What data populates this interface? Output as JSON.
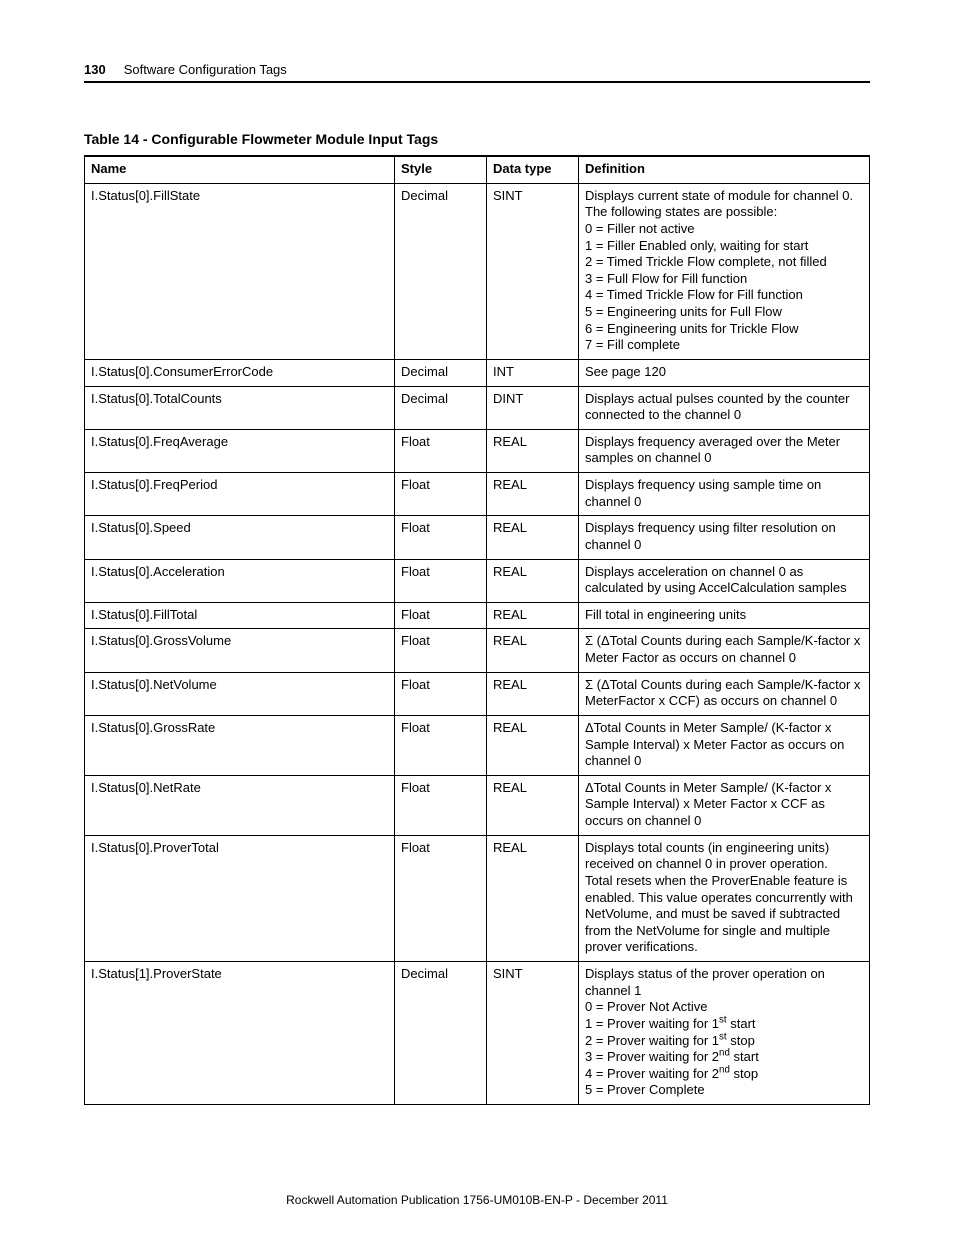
{
  "header": {
    "page_number": "130",
    "section_title": "Software Configuration Tags"
  },
  "table": {
    "title": "Table 14 - Configurable Flowmeter Module Input Tags",
    "columns": [
      "Name",
      "Style",
      "Data type",
      "Definition"
    ],
    "rows": [
      {
        "name": "I.Status[0].FillState",
        "style": "Decimal",
        "type": "SINT",
        "def_lines": [
          "Displays current state of module for channel 0. The following states are possible:",
          "0 = Filler not active",
          "1 = Filler Enabled only, waiting for start",
          "2 = Timed Trickle Flow complete, not filled",
          "3 = Full Flow for Fill function",
          "4 = Timed Trickle Flow for Fill function",
          "5 = Engineering units for Full Flow",
          "6 = Engineering units for Trickle Flow",
          "7 = Fill complete"
        ]
      },
      {
        "name": "I.Status[0].ConsumerErrorCode",
        "style": "Decimal",
        "type": "INT",
        "def_lines": [
          "See page 120"
        ]
      },
      {
        "name": "I.Status[0].TotalCounts",
        "style": "Decimal",
        "type": "DINT",
        "def_lines": [
          "Displays actual pulses counted by the counter connected to the channel 0"
        ]
      },
      {
        "name": "I.Status[0].FreqAverage",
        "style": "Float",
        "type": "REAL",
        "def_lines": [
          "Displays frequency averaged over the Meter samples on channel 0"
        ]
      },
      {
        "name": "I.Status[0].FreqPeriod",
        "style": "Float",
        "type": "REAL",
        "def_lines": [
          "Displays frequency using sample time on channel 0"
        ]
      },
      {
        "name": "I.Status[0].Speed",
        "style": "Float",
        "type": "REAL",
        "def_lines": [
          "Displays frequency using filter resolution on channel 0"
        ]
      },
      {
        "name": "I.Status[0].Acceleration",
        "style": "Float",
        "type": "REAL",
        "def_lines": [
          "Displays acceleration on channel 0 as calculated by using AccelCalculation samples"
        ]
      },
      {
        "name": "I.Status[0].FillTotal",
        "style": "Float",
        "type": "REAL",
        "def_lines": [
          "Fill total in engineering units"
        ]
      },
      {
        "name": "I.Status[0].GrossVolume",
        "style": "Float",
        "type": "REAL",
        "def_lines": [
          "Σ (ΔTotal Counts during each Sample/K-factor x Meter Factor as occurs on channel 0"
        ]
      },
      {
        "name": "I.Status[0].NetVolume",
        "style": "Float",
        "type": "REAL",
        "def_lines": [
          "Σ (ΔTotal Counts during each Sample/K-factor x MeterFactor x CCF) as occurs on channel 0"
        ]
      },
      {
        "name": "I.Status[0].GrossRate",
        "style": "Float",
        "type": "REAL",
        "def_lines": [
          "ΔTotal Counts in Meter Sample/ (K-factor x Sample Interval) x Meter Factor as occurs on channel 0"
        ]
      },
      {
        "name": "I.Status[0].NetRate",
        "style": "Float",
        "type": "REAL",
        "def_lines": [
          "ΔTotal Counts in Meter Sample/ (K-factor x Sample Interval) x Meter Factor x CCF as occurs on channel 0"
        ]
      },
      {
        "name": "I.Status[0].ProverTotal",
        "style": "Float",
        "type": "REAL",
        "def_lines": [
          "Displays total counts (in engineering units) received on channel 0 in prover operation.",
          "Total resets when the ProverEnable feature is enabled. This value operates concurrently with NetVolume, and must be saved if subtracted from the NetVolume for single and multiple prover verifications."
        ]
      },
      {
        "name": "I.Status[1].ProverState",
        "style": "Decimal",
        "type": "SINT",
        "def_lines": [
          "Displays status of the prover operation on channel 1",
          "0 = Prover Not Active",
          "1 = Prover waiting for 1<sup>st</sup> start",
          "2 = Prover waiting for 1<sup>st</sup> stop",
          "3 = Prover waiting for 2<sup>nd</sup> start",
          "4 = Prover waiting for 2<sup>nd</sup> stop",
          "5 = Prover Complete"
        ]
      }
    ]
  },
  "footer": "Rockwell Automation Publication 1756-UM010B-EN-P - December 2011"
}
